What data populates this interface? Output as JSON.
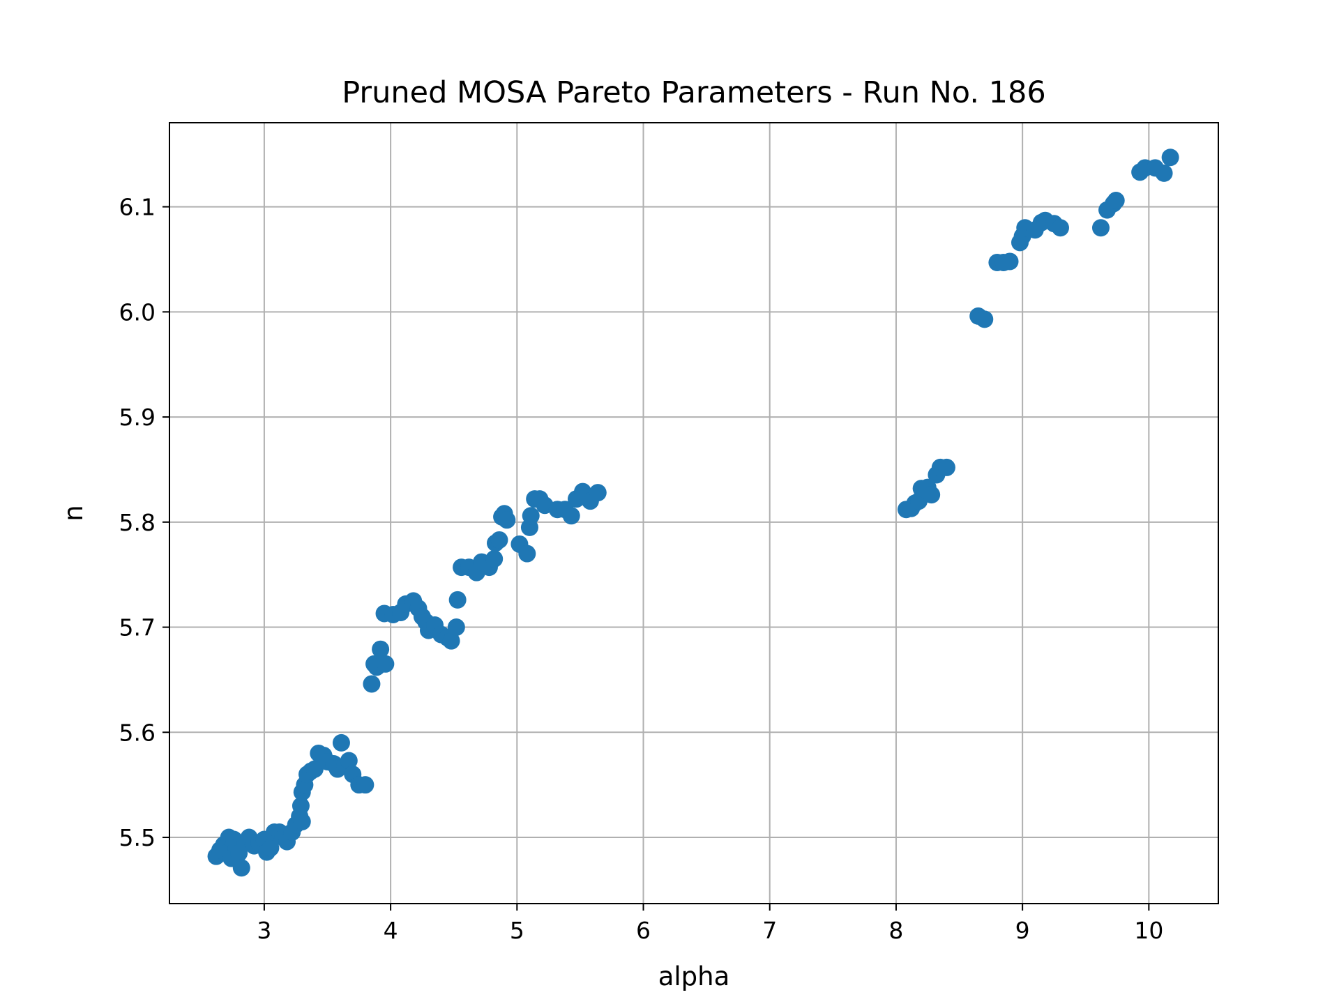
{
  "chart_data": {
    "type": "scatter",
    "title": "Pruned MOSA Pareto Parameters - Run No. 186",
    "xlabel": "alpha",
    "ylabel": "n",
    "xlim": [
      2.25,
      10.55
    ],
    "ylim": [
      5.437,
      6.18
    ],
    "xticks": [
      3,
      4,
      5,
      6,
      7,
      8,
      9,
      10
    ],
    "xtick_labels": [
      "3",
      "4",
      "5",
      "6",
      "7",
      "8",
      "9",
      "10"
    ],
    "yticks": [
      5.5,
      5.6,
      5.7,
      5.8,
      5.9,
      6.0,
      6.1
    ],
    "ytick_labels": [
      "5.5",
      "5.6",
      "5.7",
      "5.8",
      "5.9",
      "6.0",
      "6.1"
    ],
    "grid": true,
    "marker_color": "#1f77b4",
    "series": [
      {
        "points": [
          [
            2.62,
            5.482
          ],
          [
            2.65,
            5.488
          ],
          [
            2.68,
            5.493
          ],
          [
            2.7,
            5.485
          ],
          [
            2.72,
            5.5
          ],
          [
            2.74,
            5.48
          ],
          [
            2.76,
            5.498
          ],
          [
            2.78,
            5.49
          ],
          [
            2.8,
            5.485
          ],
          [
            2.82,
            5.471
          ],
          [
            2.85,
            5.495
          ],
          [
            2.88,
            5.5
          ],
          [
            2.92,
            5.492
          ],
          [
            2.96,
            5.495
          ],
          [
            3.0,
            5.498
          ],
          [
            3.02,
            5.486
          ],
          [
            3.05,
            5.49
          ],
          [
            3.08,
            5.505
          ],
          [
            3.12,
            5.505
          ],
          [
            3.15,
            5.5
          ],
          [
            3.18,
            5.496
          ],
          [
            3.22,
            5.505
          ],
          [
            3.25,
            5.512
          ],
          [
            3.28,
            5.52
          ],
          [
            3.3,
            5.515
          ],
          [
            3.29,
            5.53
          ],
          [
            3.3,
            5.543
          ],
          [
            3.32,
            5.55
          ],
          [
            3.34,
            5.56
          ],
          [
            3.37,
            5.563
          ],
          [
            3.4,
            5.565
          ],
          [
            3.43,
            5.58
          ],
          [
            3.47,
            5.578
          ],
          [
            3.5,
            5.572
          ],
          [
            3.55,
            5.57
          ],
          [
            3.58,
            5.565
          ],
          [
            3.61,
            5.59
          ],
          [
            3.64,
            5.568
          ],
          [
            3.67,
            5.573
          ],
          [
            3.7,
            5.56
          ],
          [
            3.75,
            5.55
          ],
          [
            3.8,
            5.55
          ],
          [
            3.85,
            5.646
          ],
          [
            3.87,
            5.665
          ],
          [
            3.89,
            5.662
          ],
          [
            3.92,
            5.679
          ],
          [
            3.96,
            5.665
          ],
          [
            3.95,
            5.713
          ],
          [
            4.02,
            5.712
          ],
          [
            4.08,
            5.714
          ],
          [
            4.12,
            5.722
          ],
          [
            4.18,
            5.725
          ],
          [
            4.22,
            5.718
          ],
          [
            4.25,
            5.71
          ],
          [
            4.28,
            5.705
          ],
          [
            4.3,
            5.697
          ],
          [
            4.35,
            5.702
          ],
          [
            4.4,
            5.693
          ],
          [
            4.45,
            5.69
          ],
          [
            4.48,
            5.687
          ],
          [
            4.52,
            5.7
          ],
          [
            4.53,
            5.726
          ],
          [
            4.56,
            5.757
          ],
          [
            4.62,
            5.757
          ],
          [
            4.68,
            5.752
          ],
          [
            4.72,
            5.762
          ],
          [
            4.78,
            5.757
          ],
          [
            4.82,
            5.765
          ],
          [
            4.83,
            5.78
          ],
          [
            4.86,
            5.783
          ],
          [
            4.88,
            5.805
          ],
          [
            4.9,
            5.808
          ],
          [
            4.92,
            5.802
          ],
          [
            5.02,
            5.779
          ],
          [
            5.08,
            5.77
          ],
          [
            5.1,
            5.795
          ],
          [
            5.11,
            5.806
          ],
          [
            5.14,
            5.822
          ],
          [
            5.18,
            5.822
          ],
          [
            5.22,
            5.816
          ],
          [
            5.32,
            5.812
          ],
          [
            5.38,
            5.812
          ],
          [
            5.43,
            5.806
          ],
          [
            5.47,
            5.822
          ],
          [
            5.52,
            5.829
          ],
          [
            5.58,
            5.82
          ],
          [
            5.64,
            5.828
          ],
          [
            8.08,
            5.812
          ],
          [
            8.12,
            5.813
          ],
          [
            8.15,
            5.818
          ],
          [
            8.18,
            5.82
          ],
          [
            8.2,
            5.832
          ],
          [
            8.25,
            5.833
          ],
          [
            8.28,
            5.826
          ],
          [
            8.32,
            5.845
          ],
          [
            8.35,
            5.852
          ],
          [
            8.4,
            5.852
          ],
          [
            8.65,
            5.996
          ],
          [
            8.7,
            5.993
          ],
          [
            8.8,
            6.047
          ],
          [
            8.85,
            6.047
          ],
          [
            8.9,
            6.048
          ],
          [
            8.98,
            6.066
          ],
          [
            9.0,
            6.072
          ],
          [
            9.02,
            6.08
          ],
          [
            9.1,
            6.078
          ],
          [
            9.15,
            6.085
          ],
          [
            9.18,
            6.087
          ],
          [
            9.25,
            6.084
          ],
          [
            9.3,
            6.08
          ],
          [
            9.62,
            6.08
          ],
          [
            9.67,
            6.097
          ],
          [
            9.72,
            6.103
          ],
          [
            9.74,
            6.106
          ],
          [
            9.93,
            6.133
          ],
          [
            9.97,
            6.137
          ],
          [
            10.05,
            6.137
          ],
          [
            10.12,
            6.132
          ],
          [
            10.17,
            6.147
          ]
        ]
      }
    ]
  }
}
